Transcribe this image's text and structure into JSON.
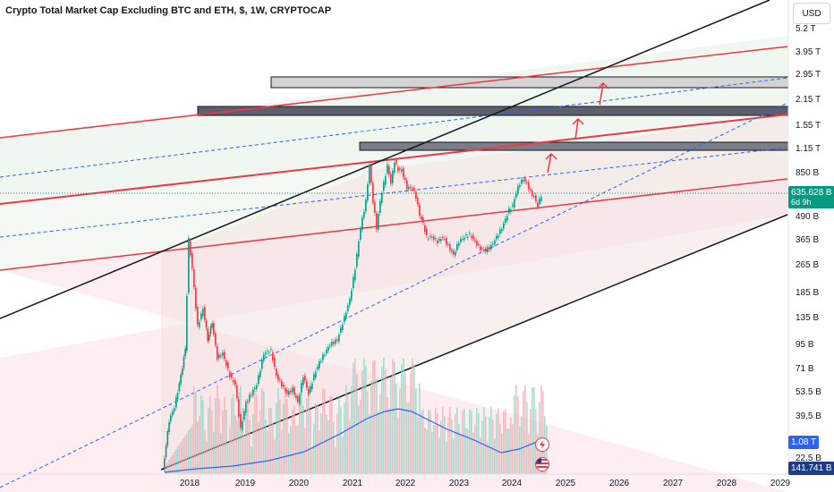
{
  "header": {
    "title": "Crypto Total Market Cap Excluding BTC and ETH, $, 1W, CRYPTOCAP"
  },
  "toolbar": {
    "currency_label": "USD"
  },
  "price_axis": {
    "labels": [
      "5.2 T",
      "3.95 T",
      "2.95 T",
      "2.15 T",
      "1.55 T",
      "1.15 T",
      "850 B",
      "490 B",
      "365 B",
      "265 B",
      "185 B",
      "135 B",
      "95 B",
      "71 B",
      "53.5 B",
      "39.5 B",
      "22.5 B"
    ]
  },
  "time_axis": {
    "labels": [
      "2018",
      "2019",
      "2020",
      "2021",
      "2022",
      "2023",
      "2024",
      "2025",
      "2026",
      "2027",
      "2028",
      "2029"
    ]
  },
  "tags": {
    "last_price": "635.628 B",
    "countdown": "6d 9h",
    "indicator_value": "1.08 T",
    "volume_value": "141.741 B"
  },
  "icons": {
    "flash": "flash-icon",
    "flag": "us-flag-icon"
  },
  "colors": {
    "price_tag": "#089981",
    "indicator_tag": "#2962ff",
    "volume_tag": "#1e3a8a",
    "up_candle": "#089981",
    "down_candle": "#f23645",
    "red_lines": "#f23645",
    "blue_dashed": "#2962ff",
    "ma_line": "#2962ff"
  }
}
